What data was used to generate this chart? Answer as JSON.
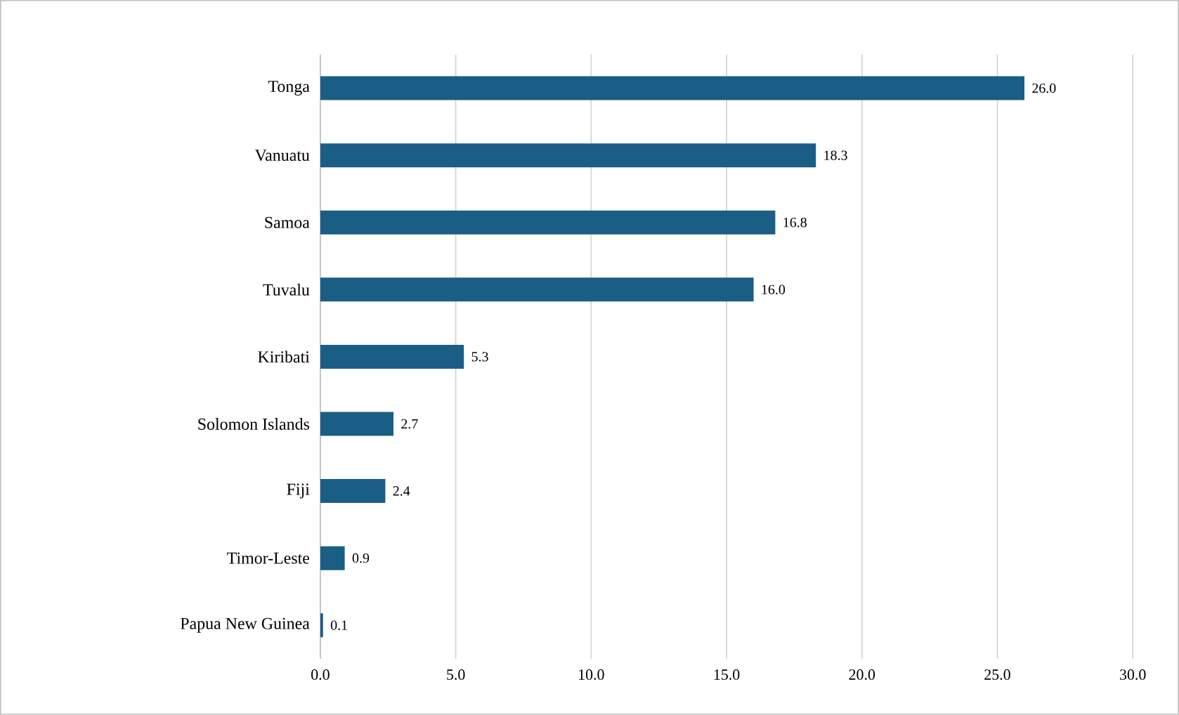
{
  "chart_data": {
    "type": "bar",
    "orientation": "horizontal",
    "categories": [
      "Tonga",
      "Vanuatu",
      "Samoa",
      "Tuvalu",
      "Kiribati",
      "Solomon Islands",
      "Fiji",
      "Timor-Leste",
      "Papua New Guinea"
    ],
    "values": [
      26.0,
      18.3,
      16.8,
      16.0,
      5.3,
      2.7,
      2.4,
      0.9,
      0.1
    ],
    "value_labels": [
      "26.0",
      "18.3",
      "16.8",
      "16.0",
      "5.3",
      "2.7",
      "2.4",
      "0.9",
      "0.1"
    ],
    "color": "#1b5e85",
    "xlim": [
      0,
      30
    ],
    "xticks": [
      {
        "value": 0,
        "label": "0.0"
      },
      {
        "value": 5,
        "label": "5.0"
      },
      {
        "value": 10,
        "label": "10.0"
      },
      {
        "value": 15,
        "label": "15.0"
      },
      {
        "value": 20,
        "label": "20.0"
      },
      {
        "value": 25,
        "label": "25.0"
      },
      {
        "value": 30,
        "label": "30.0"
      }
    ],
    "grid": "x"
  }
}
